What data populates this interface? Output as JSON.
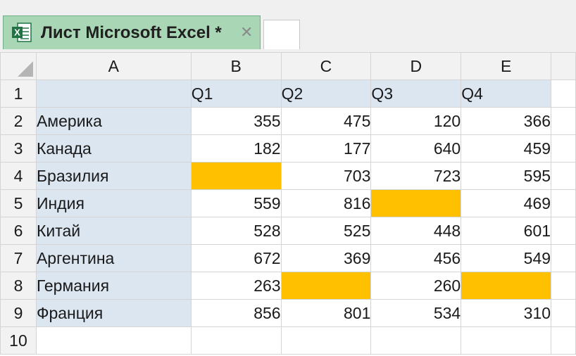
{
  "tab": {
    "title": "Лист Microsoft Excel *",
    "close_glyph": "✕",
    "icon": "excel-icon"
  },
  "columns": [
    "A",
    "B",
    "C",
    "D",
    "E"
  ],
  "row_numbers": [
    "1",
    "2",
    "3",
    "4",
    "5",
    "6",
    "7",
    "8",
    "9",
    "10"
  ],
  "header_row": [
    "",
    "Q1",
    "Q2",
    "Q3",
    "Q4"
  ],
  "rows": [
    {
      "label": "Америка",
      "values": [
        "355",
        "475",
        "120",
        "366"
      ]
    },
    {
      "label": "Канада",
      "values": [
        "182",
        "177",
        "640",
        "459"
      ]
    },
    {
      "label": "Бразилия",
      "values": [
        "",
        "703",
        "723",
        "595"
      ]
    },
    {
      "label": "Индия",
      "values": [
        "559",
        "816",
        "",
        "469"
      ]
    },
    {
      "label": "Китай",
      "values": [
        "528",
        "525",
        "448",
        "601"
      ]
    },
    {
      "label": "Аргентина",
      "values": [
        "672",
        "369",
        "456",
        "549"
      ]
    },
    {
      "label": "Германия",
      "values": [
        "263",
        "",
        "260",
        ""
      ]
    },
    {
      "label": "Франция",
      "values": [
        "856",
        "801",
        "534",
        "310"
      ]
    }
  ],
  "colors": {
    "label_fill": "#dce6f1",
    "empty_fill": "#ffc000",
    "tab_fill": "#a9d7b6"
  }
}
